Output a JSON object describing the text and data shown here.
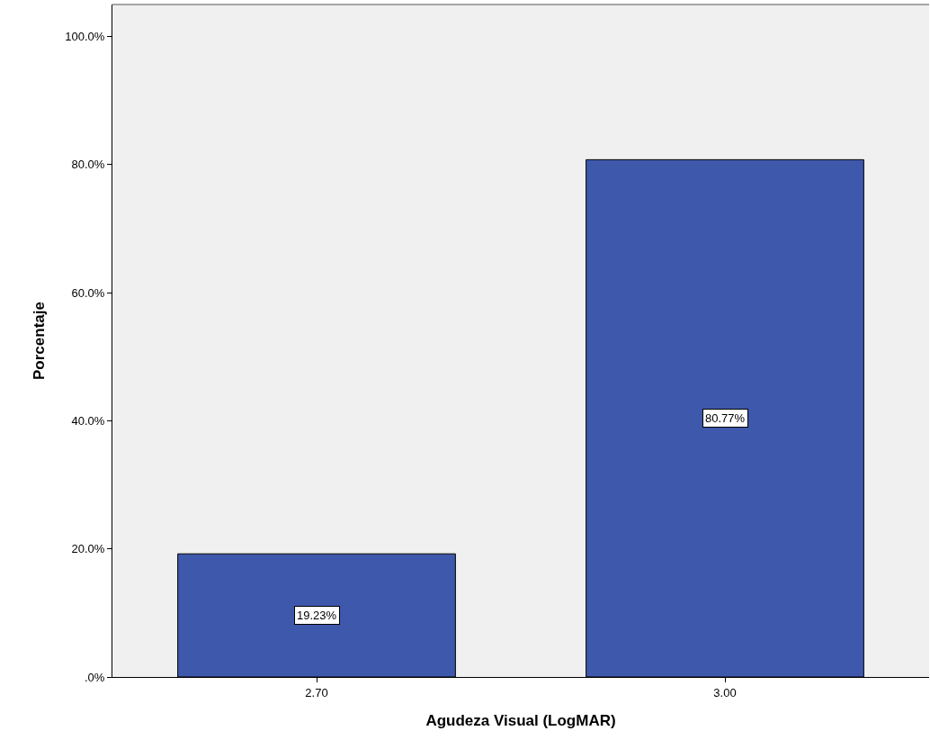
{
  "chart_data": {
    "type": "bar",
    "xlabel": "Agudeza Visual (LogMAR)",
    "ylabel": "Porcentaje",
    "categories": [
      "2.70",
      "3.00"
    ],
    "values": [
      19.23,
      80.77
    ],
    "value_labels": [
      "19.23%",
      "80.77%"
    ],
    "color": "#3e58ab",
    "ylim": [
      0,
      105
    ],
    "yticks": [
      {
        "value": 0,
        "label": ".0%"
      },
      {
        "value": 20,
        "label": "20.0%"
      },
      {
        "value": 40,
        "label": "40.0%"
      },
      {
        "value": 60,
        "label": "60.0%"
      },
      {
        "value": 80,
        "label": "80.0%"
      },
      {
        "value": 100,
        "label": "100.0%"
      }
    ],
    "grid": false,
    "legend": false
  }
}
